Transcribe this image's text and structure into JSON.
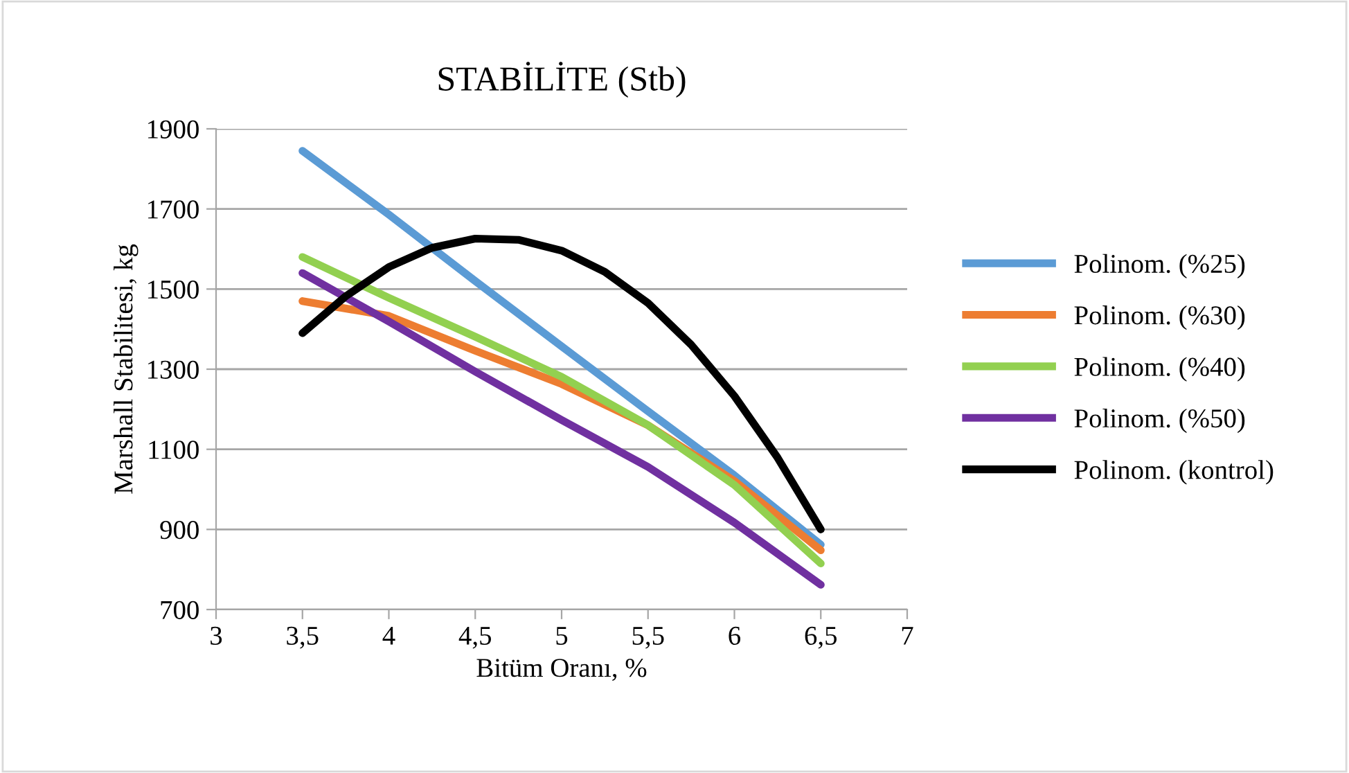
{
  "chart_data": {
    "type": "line",
    "title": "STABİLİTE (Stb)",
    "xlabel": "Bitüm Oranı, %",
    "ylabel": "Marshall Stabilitesi, kg",
    "xlim": [
      3,
      7
    ],
    "ylim": [
      700,
      1900
    ],
    "xticks": [
      3,
      {
        "value": 3.5,
        "label": "3,5"
      },
      4,
      {
        "value": 4.5,
        "label": "4,5"
      },
      5,
      {
        "value": 5.5,
        "label": "5,5"
      },
      6,
      {
        "value": 6.5,
        "label": "6,5"
      },
      7
    ],
    "yticks": [
      700,
      900,
      1100,
      1300,
      1500,
      1700,
      1900
    ],
    "grid": "y",
    "legend": "right",
    "marker": "none",
    "line_style": "solid",
    "series": [
      {
        "name": "Polinom. (%25)",
        "color": "#5b9bd5",
        "x": [
          3.5,
          4,
          4.5,
          5,
          5.5,
          6,
          6.5
        ],
        "values": [
          1845,
          1686,
          1520,
          1357,
          1195,
          1035,
          862
        ]
      },
      {
        "name": "Polinom. (%30)",
        "color": "#ed7d31",
        "x": [
          3.5,
          4,
          4.5,
          5,
          5.5,
          6,
          6.5
        ],
        "values": [
          1470,
          1433,
          1346,
          1263,
          1160,
          1021,
          848
        ]
      },
      {
        "name": "Polinom. (%40)",
        "color": "#92d050",
        "x": [
          3.5,
          4,
          4.5,
          5,
          5.5,
          6,
          6.5
        ],
        "values": [
          1580,
          1478,
          1381,
          1281,
          1160,
          1011,
          815
        ]
      },
      {
        "name": "Polinom. (%50)",
        "color": "#7030a0",
        "x": [
          3.5,
          4,
          4.5,
          5,
          5.5,
          6,
          6.5
        ],
        "values": [
          1540,
          1419,
          1294,
          1173,
          1056,
          917,
          762
        ]
      },
      {
        "name": "Polinom. (kontrol)",
        "color": "#000000",
        "x": [
          3.5,
          3.75,
          4,
          4.25,
          4.5,
          4.75,
          5,
          5.25,
          5.5,
          5.75,
          6,
          6.25,
          6.5
        ],
        "values": [
          1390,
          1482,
          1555,
          1603,
          1626,
          1623,
          1596,
          1543,
          1465,
          1361,
          1233,
          1079,
          900
        ]
      }
    ]
  }
}
